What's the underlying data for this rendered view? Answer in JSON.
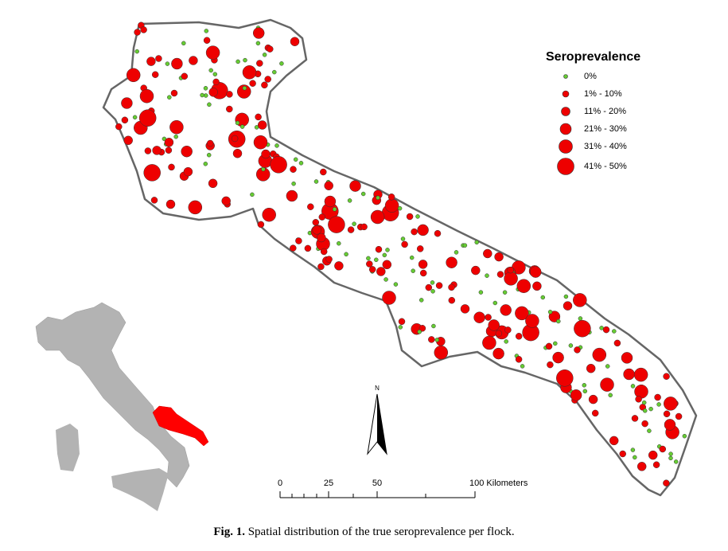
{
  "legend": {
    "title": "Seroprevalence",
    "items": [
      "0%",
      "1% - 10%",
      "11% - 20%",
      "21% - 30%",
      "31% - 40%",
      "41% - 50%"
    ]
  },
  "north": "N",
  "scale_bar": {
    "labels": [
      "0",
      "25",
      "50",
      "100 Kilometers"
    ]
  },
  "caption": {
    "label": "Fig. 1.",
    "text": "Spatial distribution of the true seroprevalence per flock."
  }
}
